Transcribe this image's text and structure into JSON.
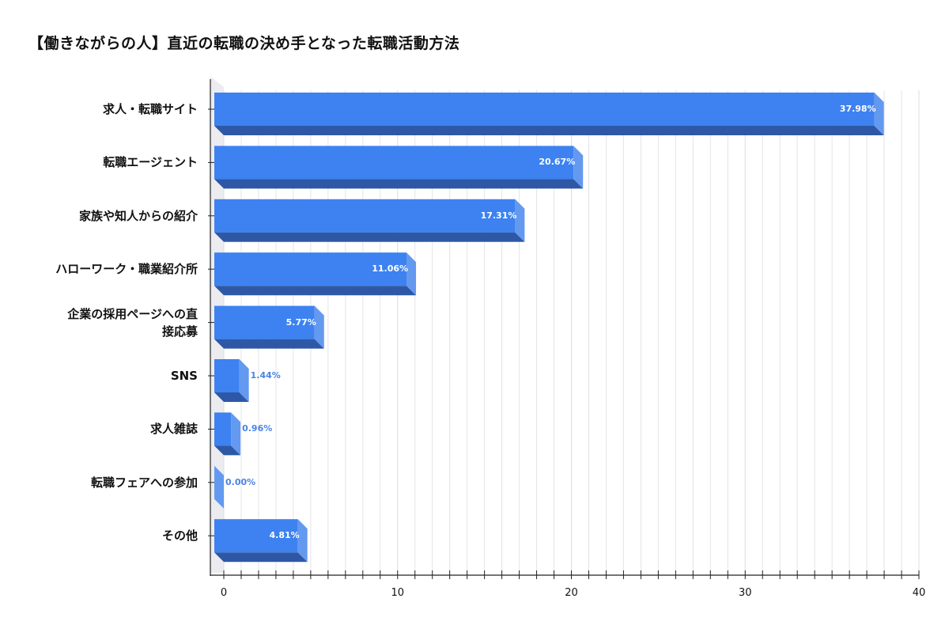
{
  "title": "【働きながらの人】直近の転職の決め手となった転職活動方法",
  "colors": {
    "bar_front": "#3d82f0",
    "bar_bottom": "#2e58a6",
    "bar_side": "#6499f0",
    "outside_label": "#4a82e8",
    "inside_label": "#ffffff",
    "grid": "#e4e4ea",
    "axis": "#222222"
  },
  "chart_data": {
    "type": "bar",
    "orientation": "horizontal",
    "style": "3d",
    "title": "【働きながらの人】直近の転職の決め手となった転職活動方法",
    "xlabel": "",
    "ylabel": "",
    "xlim": [
      0,
      40
    ],
    "x_ticks": [
      0,
      10,
      20,
      30,
      40
    ],
    "grid": true,
    "legend": null,
    "categories": [
      "求人・転職サイト",
      "転職エージェント",
      "家族や知人からの紹介",
      "ハローワーク・職業紹介所",
      "企業の採用ページへの直接応募",
      "SNS",
      "求人雑誌",
      "転職フェアへの参加",
      "その他"
    ],
    "category_display": [
      "求人・転職サイト",
      "転職エージェント",
      "家族や知人からの紹介",
      "ハローワーク・職業紹介所",
      "企業の採用ページへの直\n接応募",
      "SNS",
      "求人雑誌",
      "転職フェアへの参加",
      "その他"
    ],
    "values": [
      37.98,
      20.67,
      17.31,
      11.06,
      5.77,
      1.44,
      0.96,
      0.0,
      4.81
    ],
    "value_labels": [
      "37.98%",
      "20.67%",
      "17.31%",
      "11.06%",
      "5.77%",
      "1.44%",
      "0.96%",
      "0.00%",
      "4.81%"
    ]
  }
}
